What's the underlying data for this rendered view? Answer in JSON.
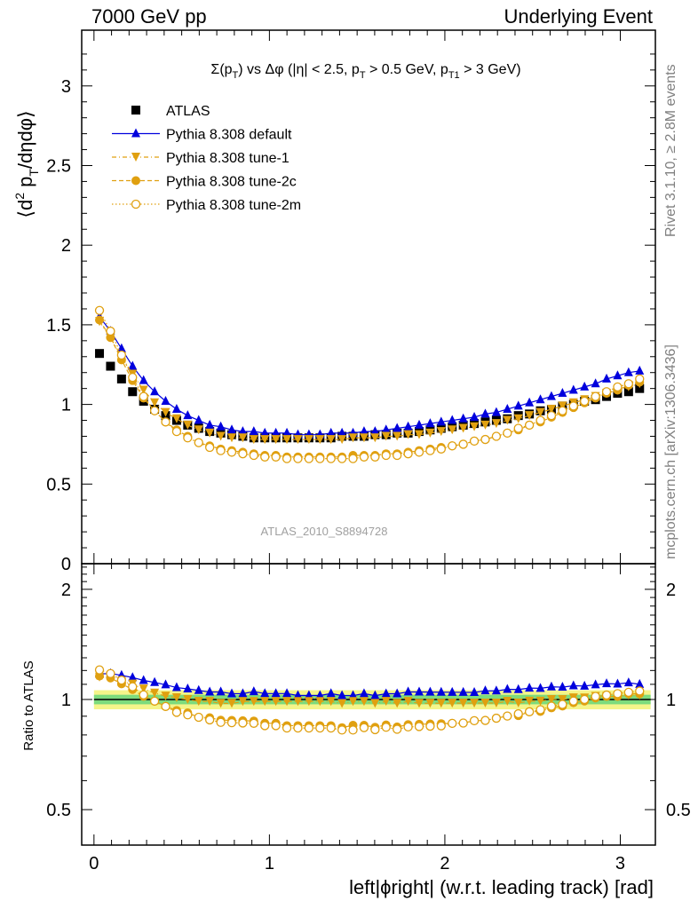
{
  "header": {
    "left": "7000 GeV pp",
    "right": "Underlying Event"
  },
  "side_labels": {
    "rivet": "Rivet 3.1.10, ≥ 2.8M events",
    "mcplots": "mcplots.cern.ch [arXiv:1306.3436]"
  },
  "chart_data": [
    {
      "type": "scatter",
      "title": "Σ(pT) vs Δφ (|η| < 2.5, pT > 0.5 GeV, pT1 > 3 GeV)",
      "title_parts": {
        "a": "Σ(p",
        "b": "T",
        "c": ") vs Δφ (|η| < 2.5, p",
        "d": "T",
        "e": " > 0.5 GeV, p",
        "f": "T1",
        "g": " > 3 GeV)"
      },
      "ylabel": "⟨d² pT/dηdφ⟩",
      "ylabel_parts": {
        "a": "⟨d",
        "b": "2",
        "c": " p",
        "d": "T",
        "e": "/dηdφ⟩"
      },
      "watermark": "ATLAS_2010_S8894728",
      "xlim": [
        -0.07,
        3.2
      ],
      "ylim": [
        0,
        3.35
      ],
      "yticks": [
        "0",
        "0.5",
        "1",
        "1.5",
        "2",
        "2.5",
        "3"
      ],
      "legend_position": "top-left",
      "x": [
        0.0314,
        0.0942,
        0.1571,
        0.2199,
        0.2827,
        0.3456,
        0.4084,
        0.4712,
        0.5341,
        0.5969,
        0.6597,
        0.7226,
        0.7854,
        0.8482,
        0.9111,
        0.9739,
        1.0367,
        1.0996,
        1.1624,
        1.2252,
        1.2881,
        1.3509,
        1.4137,
        1.4765,
        1.5394,
        1.6022,
        1.665,
        1.7279,
        1.7907,
        1.8535,
        1.9164,
        1.9792,
        2.042,
        2.1049,
        2.1677,
        2.2305,
        2.2934,
        2.3562,
        2.419,
        2.4819,
        2.5447,
        2.6075,
        2.6704,
        2.7332,
        2.796,
        2.8589,
        2.9217,
        2.9845,
        3.0474,
        3.1102
      ],
      "series": [
        {
          "name": "ATLAS",
          "color": "#000000",
          "marker": "square",
          "values": [
            1.32,
            1.24,
            1.16,
            1.08,
            1.02,
            0.97,
            0.93,
            0.9,
            0.87,
            0.85,
            0.83,
            0.82,
            0.81,
            0.8,
            0.79,
            0.79,
            0.79,
            0.79,
            0.79,
            0.79,
            0.79,
            0.79,
            0.8,
            0.8,
            0.8,
            0.81,
            0.81,
            0.82,
            0.82,
            0.83,
            0.84,
            0.85,
            0.86,
            0.87,
            0.88,
            0.89,
            0.9,
            0.91,
            0.93,
            0.94,
            0.96,
            0.97,
            0.99,
            1.0,
            1.02,
            1.03,
            1.05,
            1.07,
            1.08,
            1.1
          ]
        },
        {
          "name": "Pythia 8.308 default",
          "color": "#0000dd",
          "marker": "triangle-up",
          "line": "solid",
          "values": [
            1.55,
            1.46,
            1.35,
            1.24,
            1.15,
            1.08,
            1.02,
            0.97,
            0.93,
            0.9,
            0.87,
            0.86,
            0.84,
            0.83,
            0.83,
            0.82,
            0.82,
            0.82,
            0.81,
            0.81,
            0.81,
            0.82,
            0.82,
            0.82,
            0.83,
            0.83,
            0.84,
            0.85,
            0.86,
            0.87,
            0.88,
            0.89,
            0.9,
            0.91,
            0.92,
            0.94,
            0.95,
            0.97,
            0.99,
            1.01,
            1.03,
            1.05,
            1.07,
            1.09,
            1.11,
            1.13,
            1.16,
            1.18,
            1.2,
            1.21
          ]
        },
        {
          "name": "Pythia 8.308 tune-1",
          "color": "#e0a010",
          "marker": "triangle-down",
          "line": "dashdot",
          "values": [
            1.52,
            1.42,
            1.3,
            1.19,
            1.09,
            1.01,
            0.95,
            0.91,
            0.87,
            0.84,
            0.82,
            0.8,
            0.79,
            0.79,
            0.78,
            0.78,
            0.78,
            0.78,
            0.78,
            0.78,
            0.78,
            0.78,
            0.78,
            0.79,
            0.79,
            0.79,
            0.8,
            0.8,
            0.81,
            0.81,
            0.82,
            0.83,
            0.84,
            0.85,
            0.86,
            0.87,
            0.88,
            0.9,
            0.91,
            0.93,
            0.95,
            0.97,
            0.99,
            1.01,
            1.03,
            1.05,
            1.07,
            1.09,
            1.11,
            1.13
          ]
        },
        {
          "name": "Pythia 8.308 tune-2c",
          "color": "#e0a010",
          "marker": "circle",
          "line": "dashed",
          "values": [
            1.53,
            1.42,
            1.28,
            1.15,
            1.04,
            0.96,
            0.89,
            0.84,
            0.8,
            0.76,
            0.74,
            0.72,
            0.71,
            0.7,
            0.69,
            0.68,
            0.68,
            0.67,
            0.67,
            0.67,
            0.67,
            0.67,
            0.67,
            0.68,
            0.68,
            0.68,
            0.69,
            0.69,
            0.7,
            0.71,
            0.72,
            0.73,
            0.74,
            0.75,
            0.77,
            0.78,
            0.8,
            0.82,
            0.84,
            0.87,
            0.89,
            0.92,
            0.95,
            0.98,
            1.01,
            1.04,
            1.07,
            1.09,
            1.12,
            1.14
          ]
        },
        {
          "name": "Pythia 8.308 tune-2m",
          "color": "#e0a010",
          "marker": "circle-open",
          "line": "dotted",
          "values": [
            1.59,
            1.46,
            1.31,
            1.17,
            1.05,
            0.96,
            0.89,
            0.83,
            0.79,
            0.76,
            0.73,
            0.71,
            0.7,
            0.69,
            0.68,
            0.67,
            0.67,
            0.66,
            0.66,
            0.66,
            0.66,
            0.66,
            0.66,
            0.66,
            0.67,
            0.67,
            0.68,
            0.68,
            0.69,
            0.7,
            0.71,
            0.72,
            0.74,
            0.75,
            0.77,
            0.78,
            0.8,
            0.82,
            0.85,
            0.87,
            0.9,
            0.93,
            0.96,
            0.99,
            1.02,
            1.05,
            1.08,
            1.11,
            1.13,
            1.16
          ]
        }
      ]
    },
    {
      "type": "scatter",
      "ylabel": "Ratio to ATLAS",
      "xlabel": "left|ϕright| (w.r.t. leading track) [rad]",
      "xlim": [
        -0.07,
        3.2
      ],
      "ylim": [
        0.4,
        2.35
      ],
      "yscale": "log",
      "xticks": [
        "0",
        "1",
        "2",
        "3"
      ],
      "yticks": [
        "0.5",
        "1",
        "2"
      ],
      "reference": 1.0,
      "bands": {
        "inner": 0.03,
        "outer": 0.06,
        "inner_color": "#7ddb7d",
        "outer_color": "#f5f58a"
      },
      "series_names": [
        "Pythia 8.308 default",
        "Pythia 8.308 tune-1",
        "Pythia 8.308 tune-2c",
        "Pythia 8.308 tune-2m"
      ]
    }
  ]
}
